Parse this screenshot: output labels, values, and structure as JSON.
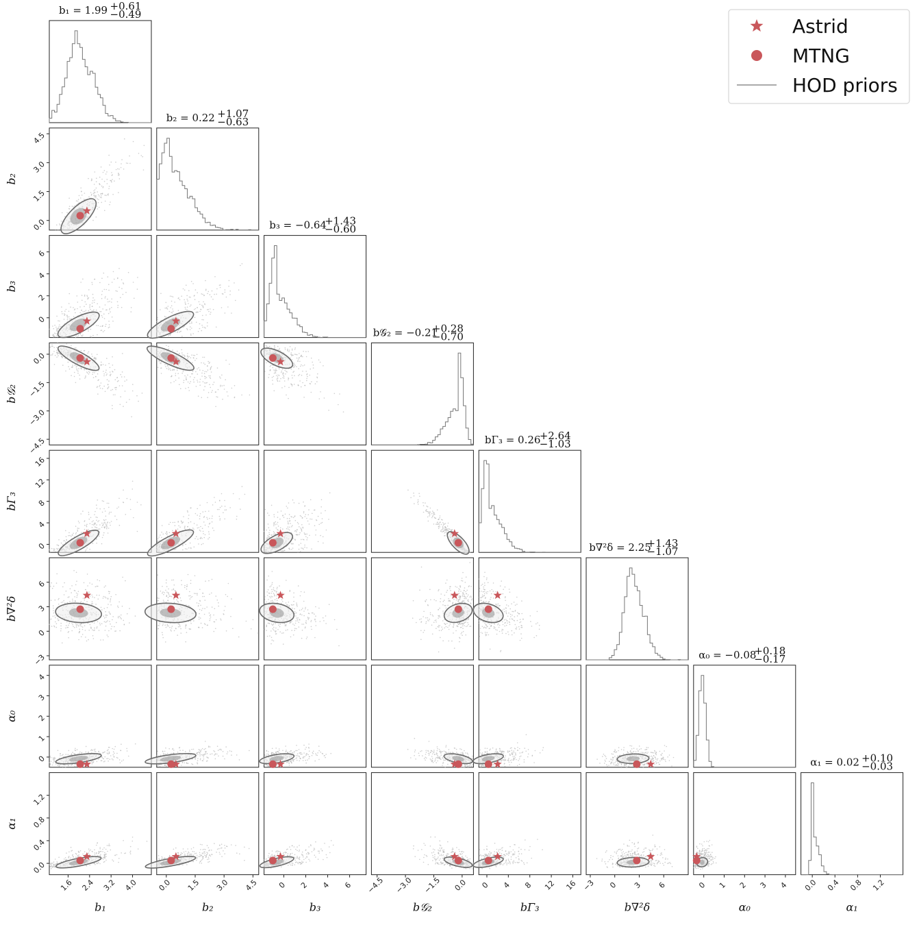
{
  "colors": {
    "marker": "#c9575b",
    "hist": "#777777",
    "contour": "#6a6a6a",
    "scatter": "#b8b8b8",
    "frame": "#222222"
  },
  "legend": {
    "position": "top-right",
    "items": [
      {
        "label": "Astrid",
        "marker": "star-icon"
      },
      {
        "label": "MTNG",
        "marker": "circle-icon"
      },
      {
        "label": "HOD priors",
        "marker": "line-icon"
      }
    ]
  },
  "chart_data": {
    "type": "corner",
    "parameters": [
      {
        "name": "b1",
        "label": "b₁",
        "title": "b₁ = 1.99",
        "sup": "+0.61",
        "sub": "−0.49",
        "range": [
          0.9,
          4.7
        ],
        "ticks": [
          1.6,
          2.4,
          3.2,
          4.0
        ],
        "tick_labels": [
          "1.6",
          "2.4",
          "3.2",
          "4.0"
        ],
        "median": 1.99,
        "err_plus": 0.61,
        "err_minus": 0.49,
        "astrid": 2.3,
        "mtng": 2.05
      },
      {
        "name": "b2",
        "label": "b₂",
        "title": "b₂ = 0.22",
        "sup": "+1.07",
        "sub": "−0.63",
        "range": [
          -0.5,
          4.8
        ],
        "ticks": [
          0.0,
          1.5,
          3.0,
          4.5
        ],
        "tick_labels": [
          "0.0",
          "1.5",
          "3.0",
          "4.5"
        ],
        "median": 0.22,
        "err_plus": 1.07,
        "err_minus": 0.63,
        "astrid": 0.5,
        "mtng": 0.25
      },
      {
        "name": "b3",
        "label": "b₃",
        "title": "b₃ = −0.64",
        "sup": "+1.43",
        "sub": "−0.60",
        "range": [
          -1.8,
          7.5
        ],
        "ticks": [
          0,
          2,
          4,
          6
        ],
        "tick_labels": [
          "0",
          "2",
          "4",
          "6"
        ],
        "median": -0.64,
        "err_plus": 1.43,
        "err_minus": 0.6,
        "astrid": -0.3,
        "mtng": -1.0
      },
      {
        "name": "bG2",
        "label": "b𝒢₂",
        "title": "b𝒢₂ = −0.21",
        "sup": "+0.28",
        "sub": "−0.70",
        "range": [
          -4.8,
          0.6
        ],
        "ticks": [
          -4.5,
          -3.0,
          -1.5,
          0.0
        ],
        "tick_labels": [
          "−4.5",
          "−3.0",
          "−1.5",
          "0.0"
        ],
        "median": -0.21,
        "err_plus": 0.28,
        "err_minus": 0.7,
        "astrid": -0.4,
        "mtng": -0.2
      },
      {
        "name": "bGamma3",
        "label": "bΓ₃",
        "title": "bΓ₃ = 0.26",
        "sup": "+2.64",
        "sub": "−1.03",
        "range": [
          -1.5,
          17.5
        ],
        "ticks": [
          0,
          4,
          8,
          12,
          16
        ],
        "tick_labels": [
          "0",
          "4",
          "8",
          "12",
          "16"
        ],
        "median": 0.26,
        "err_plus": 2.64,
        "err_minus": 1.03,
        "astrid": 2.0,
        "mtng": 0.3
      },
      {
        "name": "bNabla2delta",
        "label": "b∇²δ",
        "title": "b∇²δ = 2.25",
        "sup": "+1.43",
        "sub": "−1.07",
        "range": [
          -3.5,
          9.0
        ],
        "ticks": [
          -3,
          0,
          3,
          6
        ],
        "tick_labels": [
          "−3",
          "0",
          "3",
          "6"
        ],
        "median": 2.25,
        "err_plus": 1.43,
        "err_minus": 1.07,
        "astrid": 4.4,
        "mtng": 2.7
      },
      {
        "name": "alpha0",
        "label": "α₀",
        "title": "α₀ = −0.08",
        "sup": "+0.18",
        "sub": "−0.17",
        "range": [
          -0.5,
          4.5
        ],
        "ticks": [
          0,
          1,
          2,
          3,
          4
        ],
        "tick_labels": [
          "0",
          "1",
          "2",
          "3",
          "4"
        ],
        "median": -0.08,
        "err_plus": 0.18,
        "err_minus": 0.17,
        "astrid": -0.35,
        "mtng": -0.35
      },
      {
        "name": "alpha1",
        "label": "α₁",
        "title": "α₁ = 0.02",
        "sup": "+0.10",
        "sub": "−0.03",
        "range": [
          -0.2,
          1.6
        ],
        "ticks": [
          0.0,
          0.4,
          0.8,
          1.2
        ],
        "tick_labels": [
          "0.0",
          "0.4",
          "0.8",
          "1.2"
        ],
        "median": 0.02,
        "err_plus": 0.1,
        "err_minus": 0.03,
        "astrid": 0.12,
        "mtng": 0.05
      }
    ],
    "histogram_note": "1D marginal posteriors from HOD priors (step histograms)",
    "series": [
      {
        "name": "Astrid",
        "marker": "star"
      },
      {
        "name": "MTNG",
        "marker": "circle"
      },
      {
        "name": "HOD priors",
        "marker": "line"
      }
    ]
  }
}
